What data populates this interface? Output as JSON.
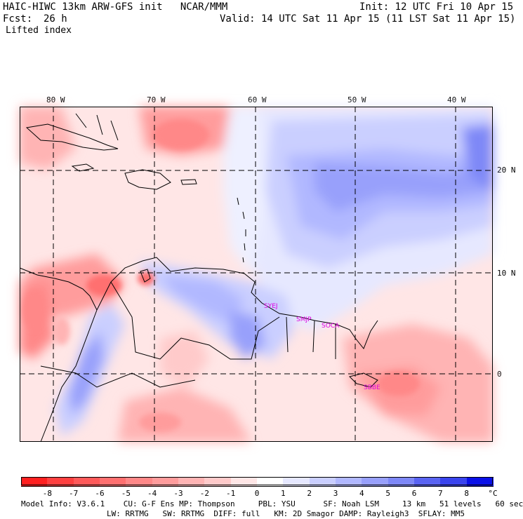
{
  "header": {
    "title_left": "HAIC-HIWC 13km ARW-GFS init   NCAR/MMM",
    "init": "Init: 12 UTC Fri 10 Apr 15",
    "fcst_label": "Fcst:",
    "fcst_value": "26 h",
    "valid": "Valid: 14 UTC Sat 11 Apr 15 (11 LST Sat 11 Apr 15)",
    "field": "Lifted index"
  },
  "map": {
    "lon_labels": [
      "80 W",
      "70 W",
      "60 W",
      "50 W",
      "40 W"
    ],
    "lat_labels": [
      "20 N",
      "10 N",
      "0"
    ],
    "stations": [
      "SYEJ",
      "SMJP",
      "SOCA",
      "SBBE"
    ],
    "colors": {
      "land_outline": "#000000",
      "gridline": "#000000"
    }
  },
  "colorbar": {
    "ticks": [
      "-8",
      "-7",
      "-6",
      "-5",
      "-4",
      "-3",
      "-2",
      "-1",
      "0",
      "1",
      "2",
      "3",
      "4",
      "5",
      "6",
      "7",
      "8"
    ],
    "unit": "°C",
    "colors": [
      "#ff2020",
      "#ff4040",
      "#ff5a5a",
      "#ff7070",
      "#ff8888",
      "#ff9c9c",
      "#ffb4b4",
      "#ffcaca",
      "#ffe6e6",
      "#ffffff",
      "#e6e8ff",
      "#cacfff",
      "#b1b8ff",
      "#98a0fb",
      "#7e88f7",
      "#5a64f2",
      "#3a44ee",
      "#0a10e8"
    ]
  },
  "footer": {
    "line1": "Model Info: V3.6.1    CU: G-F Ens MP: Thompson     PBL: YSU      SF: Noah LSM     13 km   51 levels   60 sec",
    "line2": "LW: RRTMG   SW: RRTMG  DIFF: full   KM: 2D Smagor DAMP: Rayleigh3  SFLAY: MM5"
  }
}
